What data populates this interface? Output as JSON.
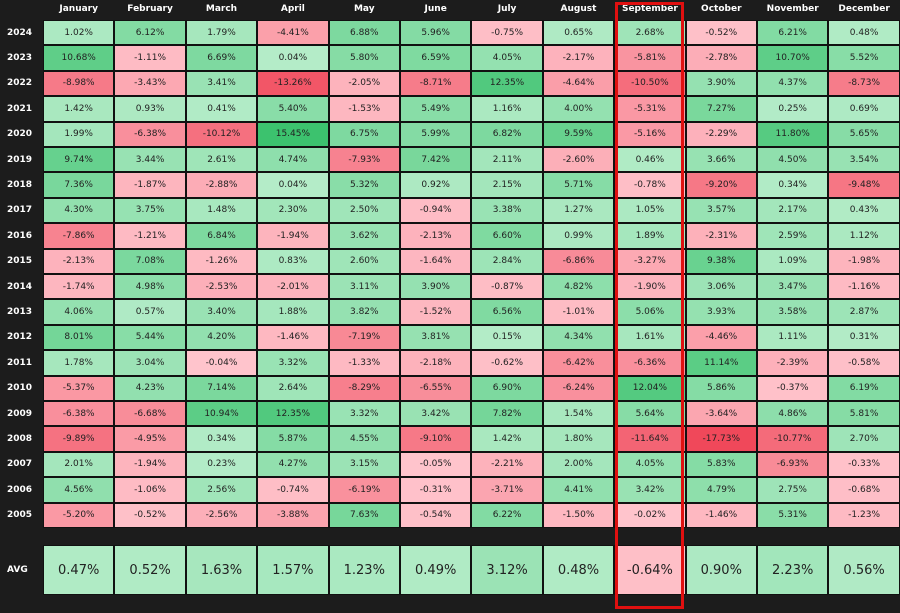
{
  "chart_data": {
    "type": "heatmap",
    "title": "",
    "months": [
      "January",
      "February",
      "March",
      "April",
      "May",
      "June",
      "July",
      "August",
      "September",
      "October",
      "November",
      "December"
    ],
    "years": [
      "2024",
      "2023",
      "2022",
      "2021",
      "2020",
      "2019",
      "2018",
      "2017",
      "2016",
      "2015",
      "2014",
      "2013",
      "2012",
      "2011",
      "2010",
      "2009",
      "2008",
      "2007",
      "2006",
      "2005"
    ],
    "rows": [
      {
        "year": "2024",
        "values": [
          "1.02%",
          "6.12%",
          "1.79%",
          "-4.41%",
          "6.88%",
          "5.96%",
          "-0.75%",
          "0.65%",
          "2.68%",
          "-0.52%",
          "6.21%",
          "0.48%"
        ]
      },
      {
        "year": "2023",
        "values": [
          "10.68%",
          "-1.11%",
          "6.69%",
          "0.04%",
          "5.80%",
          "6.59%",
          "4.05%",
          "-2.17%",
          "-5.81%",
          "-2.78%",
          "10.70%",
          "5.52%"
        ]
      },
      {
        "year": "2022",
        "values": [
          "-8.98%",
          "-3.43%",
          "3.41%",
          "-13.26%",
          "-2.05%",
          "-8.71%",
          "12.35%",
          "-4.64%",
          "-10.50%",
          "3.90%",
          "4.37%",
          "-8.73%"
        ]
      },
      {
        "year": "2021",
        "values": [
          "1.42%",
          "0.93%",
          "0.41%",
          "5.40%",
          "-1.53%",
          "5.49%",
          "1.16%",
          "4.00%",
          "-5.31%",
          "7.27%",
          "0.25%",
          "0.69%"
        ]
      },
      {
        "year": "2020",
        "values": [
          "1.99%",
          "-6.38%",
          "-10.12%",
          "15.45%",
          "6.75%",
          "5.99%",
          "6.82%",
          "9.59%",
          "-5.16%",
          "-2.29%",
          "11.80%",
          "5.65%"
        ]
      },
      {
        "year": "2019",
        "values": [
          "9.74%",
          "3.44%",
          "2.61%",
          "4.74%",
          "-7.93%",
          "7.42%",
          "2.11%",
          "-2.60%",
          "0.46%",
          "3.66%",
          "4.50%",
          "3.54%"
        ]
      },
      {
        "year": "2018",
        "values": [
          "7.36%",
          "-1.87%",
          "-2.88%",
          "0.04%",
          "5.32%",
          "0.92%",
          "2.15%",
          "5.71%",
          "-0.78%",
          "-9.20%",
          "0.34%",
          "-9.48%"
        ]
      },
      {
        "year": "2017",
        "values": [
          "4.30%",
          "3.75%",
          "1.48%",
          "2.30%",
          "2.50%",
          "-0.94%",
          "3.38%",
          "1.27%",
          "1.05%",
          "3.57%",
          "2.17%",
          "0.43%"
        ]
      },
      {
        "year": "2016",
        "values": [
          "-7.86%",
          "-1.21%",
          "6.84%",
          "-1.94%",
          "3.62%",
          "-2.13%",
          "6.60%",
          "0.99%",
          "1.89%",
          "-2.31%",
          "2.59%",
          "1.12%"
        ]
      },
      {
        "year": "2015",
        "values": [
          "-2.13%",
          "7.08%",
          "-1.26%",
          "0.83%",
          "2.60%",
          "-1.64%",
          "2.84%",
          "-6.86%",
          "-3.27%",
          "9.38%",
          "1.09%",
          "-1.98%"
        ]
      },
      {
        "year": "2014",
        "values": [
          "-1.74%",
          "4.98%",
          "-2.53%",
          "-2.01%",
          "3.11%",
          "3.90%",
          "-0.87%",
          "4.82%",
          "-1.90%",
          "3.06%",
          "3.47%",
          "-1.16%"
        ]
      },
      {
        "year": "2013",
        "values": [
          "4.06%",
          "0.57%",
          "3.40%",
          "1.88%",
          "3.82%",
          "-1.52%",
          "6.56%",
          "-1.01%",
          "5.06%",
          "3.93%",
          "3.58%",
          "2.87%"
        ]
      },
      {
        "year": "2012",
        "values": [
          "8.01%",
          "5.44%",
          "4.20%",
          "-1.46%",
          "-7.19%",
          "3.81%",
          "0.15%",
          "4.34%",
          "1.61%",
          "-4.46%",
          "1.11%",
          "0.31%"
        ]
      },
      {
        "year": "2011",
        "values": [
          "1.78%",
          "3.04%",
          "-0.04%",
          "3.32%",
          "-1.33%",
          "-2.18%",
          "-0.62%",
          "-6.42%",
          "-6.36%",
          "11.14%",
          "-2.39%",
          "-0.58%"
        ]
      },
      {
        "year": "2010",
        "values": [
          "-5.37%",
          "4.23%",
          "7.14%",
          "2.64%",
          "-8.29%",
          "-6.55%",
          "6.90%",
          "-6.24%",
          "12.04%",
          "5.86%",
          "-0.37%",
          "6.19%"
        ]
      },
      {
        "year": "2009",
        "values": [
          "-6.38%",
          "-6.68%",
          "10.94%",
          "12.35%",
          "3.32%",
          "3.42%",
          "7.82%",
          "1.54%",
          "5.64%",
          "-3.64%",
          "4.86%",
          "5.81%"
        ]
      },
      {
        "year": "2008",
        "values": [
          "-9.89%",
          "-4.95%",
          "0.34%",
          "5.87%",
          "4.55%",
          "-9.10%",
          "1.42%",
          "1.80%",
          "-11.64%",
          "-17.73%",
          "-10.77%",
          "2.70%"
        ]
      },
      {
        "year": "2007",
        "values": [
          "2.01%",
          "-1.94%",
          "0.23%",
          "4.27%",
          "3.15%",
          "-0.05%",
          "-2.21%",
          "2.00%",
          "4.05%",
          "5.83%",
          "-6.93%",
          "-0.33%"
        ]
      },
      {
        "year": "2006",
        "values": [
          "4.56%",
          "-1.06%",
          "2.56%",
          "-0.74%",
          "-6.19%",
          "-0.31%",
          "-3.71%",
          "4.41%",
          "3.42%",
          "4.79%",
          "2.75%",
          "-0.68%"
        ]
      },
      {
        "year": "2005",
        "values": [
          "-5.20%",
          "-0.52%",
          "-2.56%",
          "-3.88%",
          "7.63%",
          "-0.54%",
          "6.22%",
          "-1.50%",
          "-0.02%",
          "-1.46%",
          "5.31%",
          "-1.23%"
        ]
      }
    ],
    "avg_label": "AVG",
    "avg": [
      "0.47%",
      "0.52%",
      "1.63%",
      "1.57%",
      "1.23%",
      "0.49%",
      "3.12%",
      "0.48%",
      "-0.64%",
      "0.90%",
      "2.23%",
      "0.56%"
    ],
    "highlighted_month": "September",
    "colors": {
      "background": "#1c1c1c",
      "positive_light": "#b4ecc8",
      "positive_strong": "#3cc26e",
      "negative_light": "#ffc4cc",
      "negative_strong": "#f0485a",
      "highlight_border": "#e01010"
    }
  }
}
